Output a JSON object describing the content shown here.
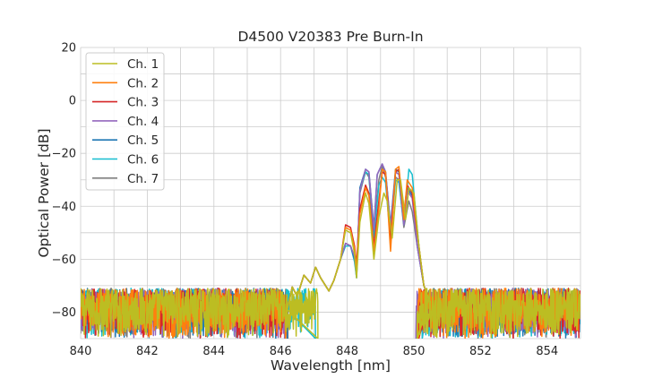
{
  "chart_data": {
    "type": "line",
    "title": "D4500 V20383 Pre Burn-In",
    "xlabel": "Wavelength [nm]",
    "ylabel": "Optical Power [dB]",
    "xlim": [
      840,
      855
    ],
    "ylim": [
      -90,
      20
    ],
    "xticks": [
      840,
      842,
      844,
      846,
      848,
      850,
      852,
      854
    ],
    "yticks": [
      20,
      0,
      -20,
      -40,
      -60,
      -80
    ],
    "xtick_labels": [
      "840",
      "842",
      "844",
      "846",
      "848",
      "850",
      "852",
      "854"
    ],
    "ytick_labels": [
      "20",
      "0",
      "−20",
      "−40",
      "−60",
      "−80"
    ],
    "grid": true,
    "legend_position": "top-left",
    "noise_floor": {
      "min": -90,
      "max": -71
    },
    "series": [
      {
        "name": "Ch. 1",
        "color": "#bcbd22",
        "noise_edges": [
          847.12,
          850.1
        ],
        "points": [
          [
            846.2,
            -79
          ],
          [
            846.35,
            -70.5
          ],
          [
            846.5,
            -74
          ],
          [
            846.7,
            -66
          ],
          [
            846.9,
            -69
          ],
          [
            847.05,
            -63
          ],
          [
            847.2,
            -67
          ],
          [
            847.45,
            -72
          ],
          [
            847.6,
            -68
          ],
          [
            847.8,
            -60
          ],
          [
            847.95,
            -49
          ],
          [
            848.1,
            -50
          ],
          [
            848.22,
            -58
          ],
          [
            848.28,
            -67
          ],
          [
            848.38,
            -46
          ],
          [
            848.55,
            -35
          ],
          [
            848.65,
            -39
          ],
          [
            848.8,
            -60
          ],
          [
            848.95,
            -44
          ],
          [
            849.1,
            -35
          ],
          [
            849.2,
            -38
          ],
          [
            849.35,
            -52
          ],
          [
            849.5,
            -30
          ],
          [
            849.6,
            -30
          ],
          [
            849.75,
            -45
          ],
          [
            849.85,
            -33
          ],
          [
            850.0,
            -35
          ],
          [
            850.15,
            -55
          ],
          [
            850.3,
            -70
          ],
          [
            850.45,
            -75
          ]
        ]
      },
      {
        "name": "Ch. 2",
        "color": "#ff7f0e",
        "noise_edges": [
          846.15,
          850.12
        ],
        "points": [
          [
            846.2,
            -79
          ],
          [
            846.35,
            -70.5
          ],
          [
            846.5,
            -74
          ],
          [
            846.7,
            -66
          ],
          [
            846.9,
            -69
          ],
          [
            847.05,
            -63
          ],
          [
            847.2,
            -67
          ],
          [
            847.45,
            -72
          ],
          [
            847.6,
            -68
          ],
          [
            847.8,
            -60
          ],
          [
            847.95,
            -48
          ],
          [
            848.1,
            -49
          ],
          [
            848.22,
            -56
          ],
          [
            848.28,
            -64
          ],
          [
            848.38,
            -43
          ],
          [
            848.55,
            -33
          ],
          [
            848.65,
            -36
          ],
          [
            848.8,
            -57
          ],
          [
            848.95,
            -41
          ],
          [
            849.05,
            -26
          ],
          [
            849.15,
            -27
          ],
          [
            849.3,
            -57
          ],
          [
            849.45,
            -26
          ],
          [
            849.55,
            -25
          ],
          [
            849.7,
            -45
          ],
          [
            849.8,
            -30
          ],
          [
            849.95,
            -33
          ],
          [
            850.15,
            -55
          ],
          [
            850.3,
            -70
          ],
          [
            850.45,
            -75
          ]
        ]
      },
      {
        "name": "Ch. 3",
        "color": "#d62728",
        "noise_edges": [
          846.15,
          850.15
        ],
        "points": [
          [
            846.2,
            -79
          ],
          [
            846.35,
            -70.5
          ],
          [
            846.5,
            -74
          ],
          [
            846.7,
            -66
          ],
          [
            846.9,
            -69
          ],
          [
            847.05,
            -63
          ],
          [
            847.2,
            -67
          ],
          [
            847.45,
            -72
          ],
          [
            847.6,
            -68
          ],
          [
            847.8,
            -60
          ],
          [
            847.95,
            -47
          ],
          [
            848.1,
            -48
          ],
          [
            848.22,
            -55
          ],
          [
            848.28,
            -62
          ],
          [
            848.38,
            -41
          ],
          [
            848.55,
            -32
          ],
          [
            848.65,
            -35
          ],
          [
            848.8,
            -55
          ],
          [
            848.95,
            -38
          ],
          [
            849.05,
            -27
          ],
          [
            849.15,
            -28
          ],
          [
            849.3,
            -53
          ],
          [
            849.45,
            -27
          ],
          [
            849.55,
            -26
          ],
          [
            849.7,
            -43
          ],
          [
            849.8,
            -32
          ],
          [
            849.95,
            -35
          ],
          [
            850.15,
            -55
          ],
          [
            850.3,
            -70
          ],
          [
            850.45,
            -75
          ]
        ]
      },
      {
        "name": "Ch. 4",
        "color": "#9467bd",
        "noise_edges": [
          846.12,
          850.06
        ],
        "points": [
          [
            846.2,
            -79
          ],
          [
            846.35,
            -70.5
          ],
          [
            846.5,
            -74
          ],
          [
            846.7,
            -66
          ],
          [
            846.9,
            -69
          ],
          [
            847.05,
            -63
          ],
          [
            847.2,
            -67
          ],
          [
            847.45,
            -72
          ],
          [
            847.6,
            -68
          ],
          [
            847.8,
            -60
          ],
          [
            847.95,
            -54
          ],
          [
            848.1,
            -55
          ],
          [
            848.22,
            -59
          ],
          [
            848.28,
            -66
          ],
          [
            848.38,
            -34
          ],
          [
            848.55,
            -26
          ],
          [
            848.65,
            -27
          ],
          [
            848.8,
            -49
          ],
          [
            848.9,
            -28
          ],
          [
            849.05,
            -24
          ],
          [
            849.15,
            -27
          ],
          [
            849.3,
            -48
          ],
          [
            849.45,
            -27
          ],
          [
            849.55,
            -28
          ],
          [
            849.7,
            -47
          ],
          [
            849.8,
            -34
          ],
          [
            849.95,
            -37
          ],
          [
            850.1,
            -55
          ],
          [
            850.3,
            -70
          ],
          [
            850.45,
            -75
          ]
        ]
      },
      {
        "name": "Ch. 5",
        "color": "#1f77b4",
        "noise_edges": [
          846.2,
          850.08
        ],
        "points": [
          [
            846.2,
            -79
          ],
          [
            846.35,
            -70.5
          ],
          [
            846.5,
            -74
          ],
          [
            846.7,
            -66
          ],
          [
            846.9,
            -69
          ],
          [
            847.05,
            -63
          ],
          [
            847.2,
            -67
          ],
          [
            847.45,
            -72
          ],
          [
            847.6,
            -68
          ],
          [
            847.8,
            -60
          ],
          [
            847.95,
            -54
          ],
          [
            848.1,
            -55
          ],
          [
            848.22,
            -60
          ],
          [
            848.28,
            -66
          ],
          [
            848.38,
            -33
          ],
          [
            848.55,
            -26
          ],
          [
            848.65,
            -27
          ],
          [
            848.8,
            -48
          ],
          [
            848.9,
            -28
          ],
          [
            849.05,
            -24
          ],
          [
            849.15,
            -27
          ],
          [
            849.3,
            -47
          ],
          [
            849.45,
            -26
          ],
          [
            849.55,
            -27
          ],
          [
            849.7,
            -47
          ],
          [
            849.8,
            -33
          ],
          [
            849.95,
            -36
          ],
          [
            850.1,
            -55
          ],
          [
            850.3,
            -70
          ],
          [
            850.45,
            -75
          ]
        ]
      },
      {
        "name": "Ch. 6",
        "color": "#17becf",
        "noise_edges": [
          847.05,
          850.25
        ],
        "points": [
          [
            846.2,
            -79
          ],
          [
            846.35,
            -70.5
          ],
          [
            846.5,
            -74
          ],
          [
            846.7,
            -66
          ],
          [
            846.9,
            -69
          ],
          [
            847.05,
            -63
          ],
          [
            847.2,
            -67
          ],
          [
            847.45,
            -72
          ],
          [
            847.6,
            -68
          ],
          [
            847.8,
            -60
          ],
          [
            847.95,
            -55
          ],
          [
            848.1,
            -55
          ],
          [
            848.22,
            -61
          ],
          [
            848.28,
            -67
          ],
          [
            848.38,
            -34
          ],
          [
            848.55,
            -27
          ],
          [
            848.65,
            -28
          ],
          [
            848.8,
            -52
          ],
          [
            848.95,
            -32
          ],
          [
            849.05,
            -29
          ],
          [
            849.15,
            -31
          ],
          [
            849.3,
            -53
          ],
          [
            849.45,
            -30
          ],
          [
            849.55,
            -31
          ],
          [
            849.7,
            -47
          ],
          [
            849.85,
            -26
          ],
          [
            849.95,
            -28
          ],
          [
            850.15,
            -55
          ],
          [
            850.3,
            -70
          ],
          [
            850.45,
            -75
          ]
        ]
      },
      {
        "name": "Ch. 7",
        "color": "#7f7f7f",
        "noise_edges": [
          846.22,
          850.1
        ],
        "points": [
          [
            846.2,
            -79
          ],
          [
            846.35,
            -70.5
          ],
          [
            846.5,
            -74
          ],
          [
            846.7,
            -66
          ],
          [
            846.9,
            -69
          ],
          [
            847.05,
            -63
          ],
          [
            847.2,
            -67
          ],
          [
            847.45,
            -72
          ],
          [
            847.6,
            -68
          ],
          [
            847.8,
            -60
          ],
          [
            847.95,
            -54
          ],
          [
            848.1,
            -55
          ],
          [
            848.22,
            -60
          ],
          [
            848.28,
            -67
          ],
          [
            848.38,
            -35
          ],
          [
            848.55,
            -27
          ],
          [
            848.65,
            -29
          ],
          [
            848.8,
            -50
          ],
          [
            848.95,
            -30
          ],
          [
            849.05,
            -25
          ],
          [
            849.15,
            -29
          ],
          [
            849.3,
            -50
          ],
          [
            849.45,
            -29
          ],
          [
            849.55,
            -30
          ],
          [
            849.7,
            -48
          ],
          [
            849.85,
            -38
          ],
          [
            849.95,
            -42
          ],
          [
            850.1,
            -55
          ],
          [
            850.3,
            -70
          ],
          [
            850.45,
            -75
          ]
        ]
      }
    ]
  }
}
